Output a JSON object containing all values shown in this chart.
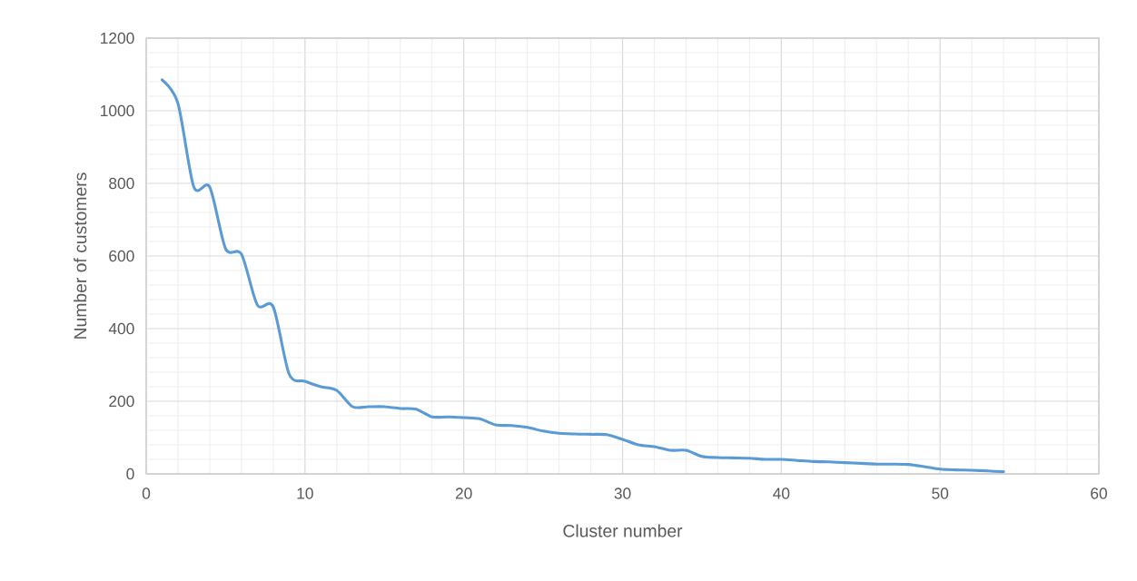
{
  "chart_data": {
    "type": "line",
    "xlabel": "Cluster number",
    "ylabel": "Number of customers",
    "x": [
      1,
      2,
      3,
      4,
      5,
      6,
      7,
      8,
      9,
      10,
      11,
      12,
      13,
      14,
      15,
      16,
      17,
      18,
      19,
      20,
      21,
      22,
      23,
      24,
      25,
      26,
      27,
      28,
      29,
      30,
      31,
      32,
      33,
      34,
      35,
      36,
      37,
      38,
      39,
      40,
      41,
      42,
      43,
      44,
      45,
      46,
      47,
      48,
      49,
      50,
      51,
      52,
      53,
      54
    ],
    "series": [
      {
        "color": "#5b9bd5",
        "values": [
          1085,
          1020,
          790,
          790,
          620,
          605,
          465,
          460,
          275,
          255,
          240,
          230,
          185,
          185,
          185,
          180,
          178,
          157,
          157,
          155,
          152,
          135,
          133,
          128,
          118,
          112,
          110,
          109,
          108,
          95,
          80,
          75,
          65,
          65,
          48,
          45,
          44,
          43,
          40,
          40,
          37,
          34,
          33,
          31,
          29,
          27,
          27,
          26,
          20,
          13,
          11,
          10,
          8,
          6
        ]
      }
    ],
    "xlim": [
      0,
      60
    ],
    "xticks": [
      0,
      10,
      20,
      30,
      40,
      50,
      60
    ],
    "ylim": [
      0,
      1200
    ],
    "yticks": [
      0,
      200,
      400,
      600,
      800,
      1000,
      1200
    ],
    "grid": true,
    "marker": "none",
    "line_style": "solid"
  }
}
